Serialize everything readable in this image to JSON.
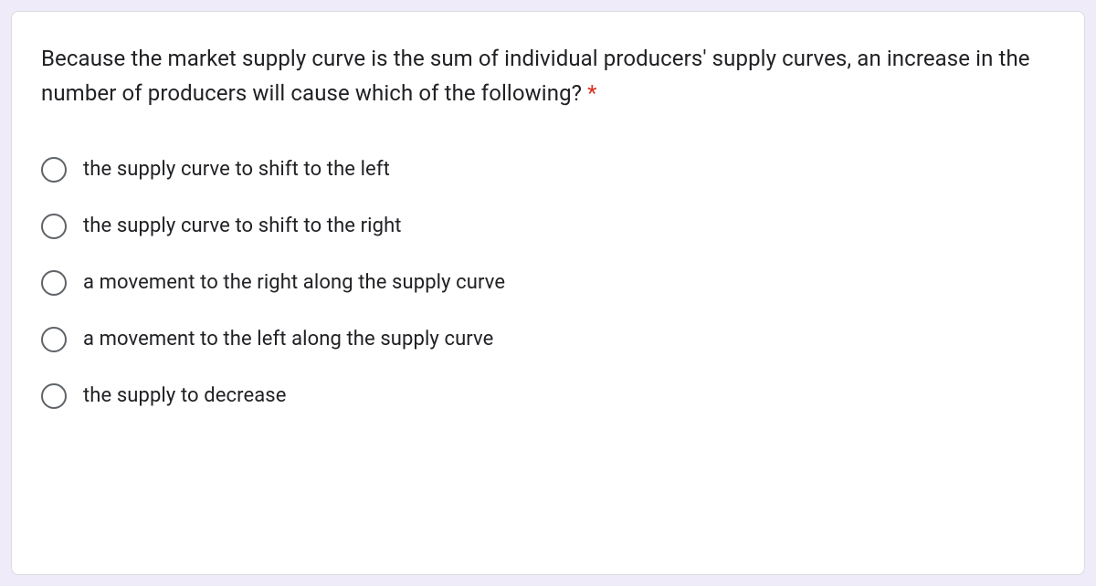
{
  "question": {
    "text": "Because the market supply curve is the sum of individual producers' supply curves, an increase in the number of producers will cause which of the following?",
    "required_marker": " *"
  },
  "options": [
    {
      "label": "the supply curve to shift to the left"
    },
    {
      "label": "the supply curve to shift to the right"
    },
    {
      "label": "a movement to the right along the supply curve"
    },
    {
      "label": "a movement to the left along the supply curve"
    },
    {
      "label": "the supply to decrease"
    }
  ],
  "colors": {
    "page_background": "#f0ebf8",
    "card_background": "#ffffff",
    "card_border": "#dadce0",
    "text_primary": "#202124",
    "radio_border": "#5f6368",
    "required": "#d93025"
  },
  "typography": {
    "question_fontsize": 24,
    "option_fontsize": 22,
    "font_family": "Google Sans, Roboto, Arial, sans-serif"
  }
}
